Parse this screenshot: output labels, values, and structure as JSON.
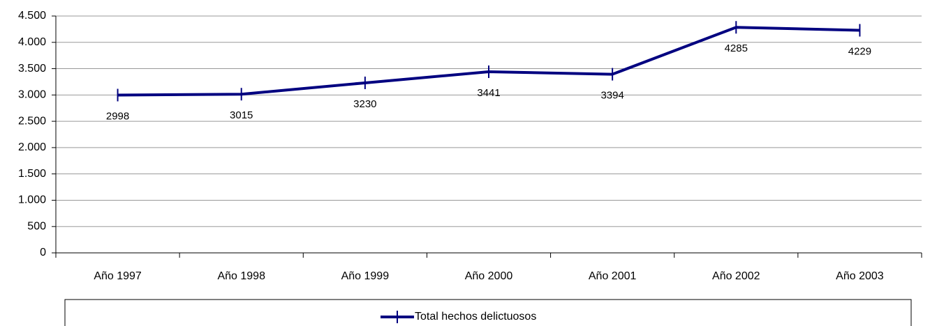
{
  "chart_data": {
    "type": "line",
    "categories": [
      "Año 1997",
      "Año 1998",
      "Año 1999",
      "Año 2000",
      "Año 2001",
      "Año 2002",
      "Año 2003"
    ],
    "series": [
      {
        "name": "Total hechos delictuosos",
        "color": "#000080",
        "values": [
          2998,
          3015,
          3230,
          3441,
          3394,
          4285,
          4229
        ]
      }
    ],
    "ylim": [
      0,
      4500
    ],
    "yticks": [
      0,
      500,
      {
        "value": 1000,
        "label": "1.000"
      },
      {
        "value": 1500,
        "label": "1.500"
      },
      {
        "value": 2000,
        "label": "2.000"
      },
      {
        "value": 2500,
        "label": "2.500"
      },
      {
        "value": 3000,
        "label": "3.000"
      },
      {
        "value": 3500,
        "label": "3.500"
      },
      {
        "value": 4000,
        "label": "4.000"
      },
      {
        "value": 4500,
        "label": "4.500"
      }
    ],
    "grid": true,
    "legend": "bottom"
  }
}
